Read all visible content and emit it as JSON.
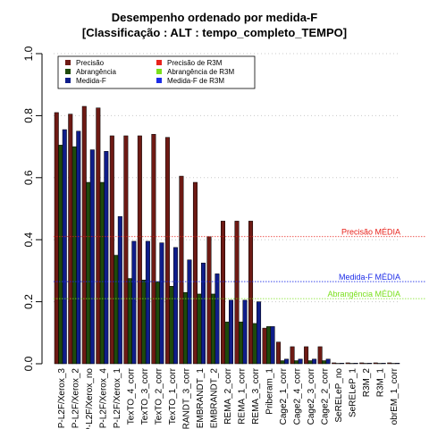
{
  "chart_data": {
    "type": "bar",
    "title": "Desempenho ordenado por medida-F",
    "subtitle": "[Classificação : ALT : tempo_completo_TEMPO]",
    "ylim": [
      0,
      1
    ],
    "yticks": [
      "0.0",
      "0.2",
      "0.4",
      "0.6",
      "0.8",
      "1.0"
    ],
    "grid": true,
    "legend_position": "top-left",
    "categories": [
      "P-L2F/Xerox_3",
      "P-L2F/Xerox_2",
      "P-L2F/Xerox_no",
      "P-L2F/Xerox_4",
      "P-L2F/Xerox_1",
      "TexTO_4_corr",
      "TexTO_3_corr",
      "TexTO_2_corr",
      "TexTO_1_corr",
      "RANDT_3_corr",
      "EMBRANDT_1",
      "EMBRANDT_2",
      "REMA_2_corr",
      "REMA_1_corr",
      "REMA_3_corr",
      "Priberam_1",
      "Cage2_1_corr",
      "Cage2_4_corr",
      "Cage2_3_corr",
      "Cage2_2_corr",
      "SeRELeP_no",
      "SeRELeP_1",
      "R3M_2",
      "R3M_1",
      "obrEM_1_corr"
    ],
    "series": [
      {
        "name": "Precisão",
        "color": "#6e1a14",
        "values": [
          0.81,
          0.805,
          0.83,
          0.825,
          0.735,
          0.735,
          0.735,
          0.74,
          0.73,
          0.605,
          0.585,
          0.41,
          0.46,
          0.46,
          0.46,
          0.115,
          0.07,
          0.055,
          0.055,
          0.055,
          0.003,
          0.003,
          0.003,
          0.003,
          0.003
        ]
      },
      {
        "name": "Abrangência",
        "color": "#1e4a0c",
        "values": [
          0.705,
          0.7,
          0.585,
          0.585,
          0.35,
          0.275,
          0.27,
          0.265,
          0.25,
          0.23,
          0.225,
          0.225,
          0.135,
          0.135,
          0.13,
          0.12,
          0.01,
          0.01,
          0.01,
          0.01,
          0.001,
          0.001,
          0.001,
          0.001,
          0.001
        ]
      },
      {
        "name": "Medida-F",
        "color": "#0f1d8a",
        "values": [
          0.755,
          0.75,
          0.69,
          0.685,
          0.475,
          0.395,
          0.395,
          0.39,
          0.375,
          0.335,
          0.325,
          0.29,
          0.205,
          0.205,
          0.2,
          0.12,
          0.015,
          0.015,
          0.015,
          0.015,
          0.002,
          0.002,
          0.002,
          0.002,
          0.002
        ]
      }
    ],
    "legend": [
      {
        "label": "Precisão",
        "color": "#6e1a14"
      },
      {
        "label": "Abrangência",
        "color": "#1e4a0c"
      },
      {
        "label": "Medida-F",
        "color": "#0f1d8a"
      },
      {
        "label": "Precisão  de  R3M",
        "color": "#e8231c"
      },
      {
        "label": "Abrangência  de  R3M",
        "color": "#7ae01c"
      },
      {
        "label": "Medida-F  de  R3M",
        "color": "#1c2ce8"
      }
    ],
    "reference_lines": [
      {
        "label": "Precisão MÉDIA",
        "value": 0.41,
        "color": "#e8231c"
      },
      {
        "label": "Medida-F MÉDIA",
        "value": 0.265,
        "color": "#1c2ce8"
      },
      {
        "label": "Abrangência MÉDIA",
        "value": 0.21,
        "color": "#7ae01c"
      }
    ]
  }
}
